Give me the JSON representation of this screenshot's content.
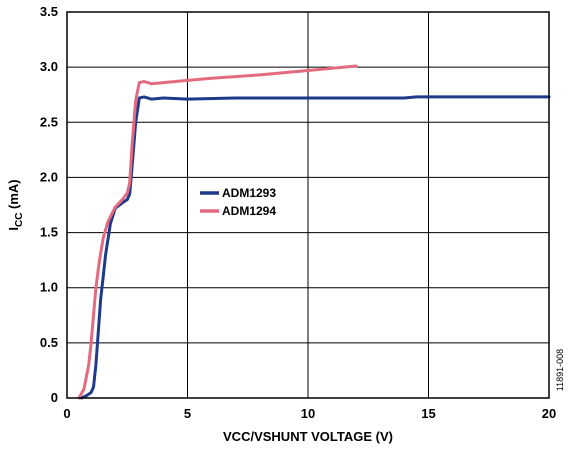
{
  "chart_data": {
    "type": "line",
    "xlabel": "VCC/VSHUNT VOLTAGE (V)",
    "ylabel": {
      "main": "I",
      "sub": "CC",
      "rest": " (mA)"
    },
    "xlim": [
      0,
      20
    ],
    "ylim": [
      0,
      3.5
    ],
    "x_ticks": [
      "0",
      "5",
      "10",
      "15",
      "20"
    ],
    "y_ticks": [
      "0",
      "0.5",
      "1.0",
      "1.5",
      "2.0",
      "2.5",
      "3.0",
      "3.5"
    ],
    "grid": true,
    "legend_position": "center-left",
    "figure_id": "11891-008",
    "series": [
      {
        "name": "ADM1293",
        "color": "#1f3a8a",
        "points": [
          [
            0.6,
            0.0
          ],
          [
            0.8,
            0.02
          ],
          [
            1.0,
            0.05
          ],
          [
            1.1,
            0.1
          ],
          [
            1.2,
            0.3
          ],
          [
            1.3,
            0.6
          ],
          [
            1.4,
            0.9
          ],
          [
            1.5,
            1.1
          ],
          [
            1.6,
            1.3
          ],
          [
            1.8,
            1.58
          ],
          [
            2.0,
            1.72
          ],
          [
            2.3,
            1.77
          ],
          [
            2.5,
            1.8
          ],
          [
            2.6,
            1.85
          ],
          [
            2.7,
            2.1
          ],
          [
            2.85,
            2.5
          ],
          [
            3.0,
            2.72
          ],
          [
            3.2,
            2.73
          ],
          [
            3.5,
            2.71
          ],
          [
            4.0,
            2.72
          ],
          [
            5.0,
            2.71
          ],
          [
            7.0,
            2.72
          ],
          [
            10.0,
            2.72
          ],
          [
            14.0,
            2.72
          ],
          [
            14.5,
            2.73
          ],
          [
            20.0,
            2.73
          ]
        ]
      },
      {
        "name": "ADM1294",
        "color": "#e26b80",
        "points": [
          [
            0.5,
            0.0
          ],
          [
            0.7,
            0.08
          ],
          [
            0.9,
            0.3
          ],
          [
            1.0,
            0.5
          ],
          [
            1.1,
            0.75
          ],
          [
            1.2,
            1.0
          ],
          [
            1.35,
            1.25
          ],
          [
            1.5,
            1.45
          ],
          [
            1.7,
            1.6
          ],
          [
            2.0,
            1.73
          ],
          [
            2.3,
            1.8
          ],
          [
            2.5,
            1.86
          ],
          [
            2.6,
            1.95
          ],
          [
            2.7,
            2.3
          ],
          [
            2.85,
            2.7
          ],
          [
            3.0,
            2.86
          ],
          [
            3.2,
            2.87
          ],
          [
            3.5,
            2.85
          ],
          [
            4.0,
            2.86
          ],
          [
            5.0,
            2.88
          ],
          [
            6.0,
            2.9
          ],
          [
            8.0,
            2.93
          ],
          [
            10.0,
            2.97
          ],
          [
            11.0,
            2.99
          ],
          [
            12.0,
            3.01
          ]
        ]
      }
    ]
  }
}
